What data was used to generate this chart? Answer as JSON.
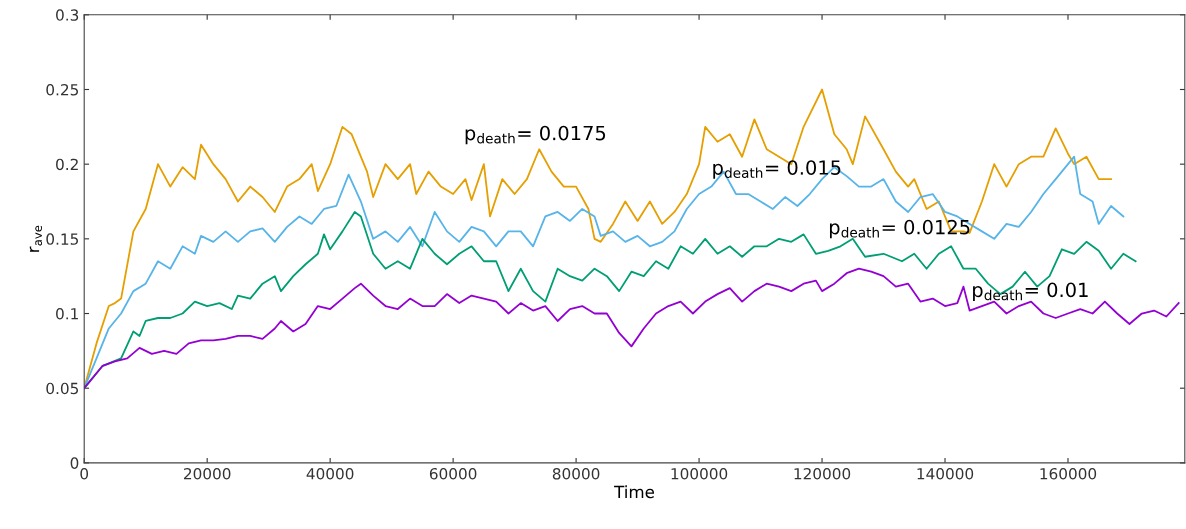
{
  "chart_data": {
    "type": "line",
    "xlabel": "Time",
    "ylabel": "r$_{ave}$",
    "xlim": [
      0,
      179000
    ],
    "ylim": [
      0,
      0.3
    ],
    "xticks": [
      0,
      20000,
      40000,
      60000,
      80000,
      100000,
      120000,
      140000,
      160000
    ],
    "yticks": [
      0,
      0.05,
      0.1,
      0.15,
      0.2,
      0.25,
      0.3
    ],
    "grid": false,
    "marker": "none",
    "line_style": "solid",
    "annotations": [
      "p$_{death}$= 0.0175",
      "p$_{death}$= 0.015",
      "p$_{death}$= 0.0125",
      "p$_{death}$= 0.01"
    ],
    "series": [
      {
        "color": "#e69f00",
        "x": [
          0,
          2000,
          4000,
          5000,
          6000,
          8000,
          10000,
          12000,
          14000,
          16000,
          18000,
          19000,
          21000,
          23000,
          25000,
          27000,
          29000,
          31000,
          33000,
          35000,
          37000,
          38000,
          40000,
          42000,
          43500,
          46000,
          47000,
          49000,
          51000,
          53000,
          54000,
          56000,
          58000,
          60000,
          62000,
          63000,
          65000,
          66000,
          68000,
          70000,
          72000,
          74000,
          76000,
          78000,
          80000,
          82000,
          83000,
          84000,
          86000,
          88000,
          90000,
          92000,
          94000,
          96000,
          98000,
          100000,
          101000,
          103000,
          105000,
          107000,
          109000,
          111000,
          113000,
          115000,
          117000,
          120000,
          122000,
          124000,
          125000,
          127000,
          130000,
          132000,
          134000,
          135000,
          137000,
          139000,
          141000,
          143000,
          144000,
          146000,
          148000,
          150000,
          152000,
          154000,
          156000,
          158000,
          160000,
          161000,
          163000,
          165000,
          167000
        ],
        "values": [
          0.05,
          0.08,
          0.105,
          0.107,
          0.11,
          0.155,
          0.17,
          0.2,
          0.185,
          0.198,
          0.19,
          0.213,
          0.2,
          0.19,
          0.175,
          0.185,
          0.178,
          0.168,
          0.185,
          0.19,
          0.2,
          0.182,
          0.2,
          0.225,
          0.22,
          0.195,
          0.178,
          0.2,
          0.19,
          0.2,
          0.18,
          0.195,
          0.185,
          0.18,
          0.19,
          0.176,
          0.2,
          0.165,
          0.19,
          0.18,
          0.19,
          0.21,
          0.195,
          0.185,
          0.185,
          0.17,
          0.15,
          0.148,
          0.16,
          0.175,
          0.162,
          0.175,
          0.16,
          0.168,
          0.18,
          0.2,
          0.225,
          0.215,
          0.22,
          0.205,
          0.23,
          0.21,
          0.205,
          0.2,
          0.225,
          0.25,
          0.22,
          0.21,
          0.2,
          0.232,
          0.21,
          0.195,
          0.185,
          0.19,
          0.17,
          0.175,
          0.155,
          0.155,
          0.154,
          0.175,
          0.2,
          0.185,
          0.2,
          0.205,
          0.205,
          0.224,
          0.207,
          0.2,
          0.205,
          0.19,
          0.19
        ]
      },
      {
        "color": "#56b4e9",
        "x": [
          0,
          2000,
          4000,
          6000,
          8000,
          10000,
          12000,
          14000,
          16000,
          18000,
          19000,
          21000,
          23000,
          25000,
          27000,
          29000,
          31000,
          33000,
          35000,
          37000,
          39000,
          41000,
          43000,
          45000,
          47000,
          49000,
          51000,
          53000,
          55000,
          57000,
          59000,
          61000,
          63000,
          65000,
          67000,
          69000,
          71000,
          73000,
          75000,
          77000,
          79000,
          81000,
          83000,
          84000,
          86000,
          88000,
          90000,
          92000,
          94000,
          96000,
          98000,
          100000,
          102000,
          104000,
          106000,
          108000,
          110000,
          112000,
          114000,
          116000,
          118000,
          120000,
          122000,
          124000,
          126000,
          128000,
          130000,
          132000,
          134000,
          136000,
          138000,
          140000,
          142000,
          144000,
          146000,
          148000,
          150000,
          152000,
          154000,
          156000,
          158000,
          160000,
          161000,
          162000,
          164000,
          165000,
          167000,
          169000
        ],
        "values": [
          0.05,
          0.07,
          0.09,
          0.1,
          0.115,
          0.12,
          0.135,
          0.13,
          0.145,
          0.14,
          0.152,
          0.148,
          0.155,
          0.148,
          0.155,
          0.157,
          0.148,
          0.158,
          0.165,
          0.16,
          0.17,
          0.172,
          0.193,
          0.175,
          0.15,
          0.155,
          0.148,
          0.158,
          0.145,
          0.168,
          0.155,
          0.148,
          0.158,
          0.155,
          0.145,
          0.155,
          0.155,
          0.145,
          0.165,
          0.168,
          0.162,
          0.17,
          0.165,
          0.152,
          0.155,
          0.148,
          0.152,
          0.145,
          0.148,
          0.155,
          0.17,
          0.18,
          0.185,
          0.195,
          0.18,
          0.18,
          0.175,
          0.17,
          0.178,
          0.172,
          0.18,
          0.19,
          0.198,
          0.192,
          0.185,
          0.185,
          0.19,
          0.175,
          0.168,
          0.178,
          0.18,
          0.168,
          0.165,
          0.16,
          0.155,
          0.15,
          0.16,
          0.158,
          0.168,
          0.18,
          0.19,
          0.2,
          0.205,
          0.18,
          0.175,
          0.16,
          0.172,
          0.165
        ]
      },
      {
        "color": "#009e73",
        "x": [
          0,
          3000,
          6000,
          8000,
          9000,
          10000,
          12000,
          14000,
          16000,
          18000,
          20000,
          22000,
          24000,
          25000,
          27000,
          29000,
          31000,
          32000,
          34000,
          36000,
          38000,
          39000,
          40000,
          42000,
          44000,
          45000,
          47000,
          49000,
          51000,
          53000,
          55000,
          57000,
          59000,
          61000,
          63000,
          65000,
          67000,
          69000,
          71000,
          73000,
          75000,
          77000,
          79000,
          81000,
          83000,
          85000,
          87000,
          89000,
          91000,
          93000,
          95000,
          97000,
          99000,
          101000,
          103000,
          105000,
          107000,
          109000,
          111000,
          113000,
          115000,
          117000,
          119000,
          121000,
          123000,
          125000,
          127000,
          130000,
          133000,
          135000,
          137000,
          139000,
          141000,
          143000,
          145000,
          147000,
          149000,
          151000,
          153000,
          155000,
          157000,
          159000,
          161000,
          163000,
          165000,
          167000,
          169000,
          171000
        ],
        "values": [
          0.05,
          0.065,
          0.07,
          0.088,
          0.085,
          0.095,
          0.097,
          0.097,
          0.1,
          0.108,
          0.105,
          0.107,
          0.103,
          0.112,
          0.11,
          0.12,
          0.125,
          0.115,
          0.125,
          0.133,
          0.14,
          0.153,
          0.143,
          0.155,
          0.168,
          0.165,
          0.14,
          0.13,
          0.135,
          0.13,
          0.15,
          0.14,
          0.133,
          0.14,
          0.145,
          0.135,
          0.135,
          0.115,
          0.13,
          0.115,
          0.108,
          0.13,
          0.125,
          0.122,
          0.13,
          0.125,
          0.115,
          0.128,
          0.125,
          0.135,
          0.13,
          0.145,
          0.14,
          0.15,
          0.14,
          0.145,
          0.138,
          0.145,
          0.145,
          0.15,
          0.148,
          0.153,
          0.14,
          0.142,
          0.145,
          0.15,
          0.138,
          0.14,
          0.135,
          0.14,
          0.13,
          0.14,
          0.145,
          0.13,
          0.13,
          0.12,
          0.113,
          0.118,
          0.128,
          0.118,
          0.125,
          0.143,
          0.14,
          0.148,
          0.142,
          0.13,
          0.14,
          0.135
        ]
      },
      {
        "color": "#9400d3",
        "x": [
          0,
          3000,
          5000,
          7000,
          9000,
          11000,
          13000,
          15000,
          17000,
          19000,
          21000,
          23000,
          25000,
          27000,
          29000,
          31000,
          32000,
          34000,
          36000,
          38000,
          40000,
          42000,
          44000,
          45000,
          47000,
          49000,
          51000,
          53000,
          55000,
          57000,
          59000,
          61000,
          63000,
          65000,
          67000,
          69000,
          71000,
          73000,
          75000,
          77000,
          79000,
          81000,
          83000,
          85000,
          87000,
          89000,
          91000,
          93000,
          95000,
          97000,
          99000,
          101000,
          103000,
          105000,
          107000,
          109000,
          111000,
          113000,
          115000,
          117000,
          119000,
          120000,
          122000,
          124000,
          126000,
          128000,
          130000,
          132000,
          134000,
          136000,
          138000,
          140000,
          142000,
          143000,
          144000,
          146000,
          148000,
          150000,
          152000,
          154000,
          156000,
          158000,
          160000,
          162000,
          164000,
          166000,
          168000,
          170000,
          172000,
          174000,
          176000,
          178000
        ],
        "values": [
          0.05,
          0.065,
          0.068,
          0.07,
          0.077,
          0.073,
          0.075,
          0.073,
          0.08,
          0.082,
          0.082,
          0.083,
          0.085,
          0.085,
          0.083,
          0.09,
          0.095,
          0.088,
          0.093,
          0.105,
          0.103,
          0.11,
          0.117,
          0.12,
          0.112,
          0.105,
          0.103,
          0.11,
          0.105,
          0.105,
          0.113,
          0.107,
          0.112,
          0.11,
          0.108,
          0.1,
          0.107,
          0.102,
          0.105,
          0.095,
          0.103,
          0.105,
          0.1,
          0.1,
          0.087,
          0.078,
          0.09,
          0.1,
          0.105,
          0.108,
          0.1,
          0.108,
          0.113,
          0.117,
          0.108,
          0.115,
          0.12,
          0.118,
          0.115,
          0.12,
          0.122,
          0.115,
          0.12,
          0.127,
          0.13,
          0.128,
          0.125,
          0.118,
          0.12,
          0.108,
          0.11,
          0.105,
          0.107,
          0.118,
          0.102,
          0.105,
          0.108,
          0.1,
          0.105,
          0.108,
          0.1,
          0.097,
          0.1,
          0.103,
          0.1,
          0.108,
          0.1,
          0.093,
          0.1,
          0.102,
          0.098,
          0.107
        ]
      }
    ]
  }
}
